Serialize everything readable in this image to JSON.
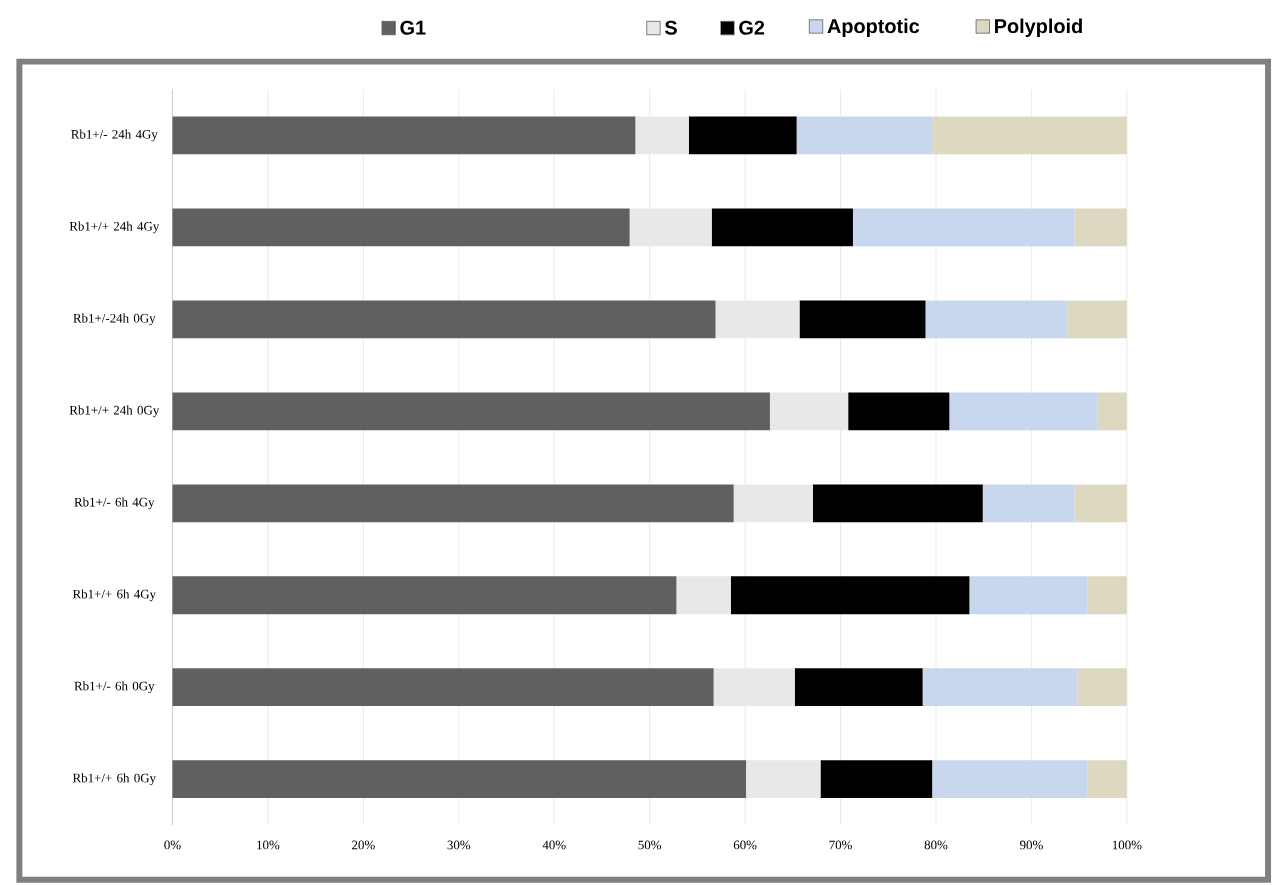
{
  "chart_data": {
    "type": "bar",
    "orientation": "horizontal",
    "stacked": true,
    "categories": [
      "Rb1+/- 24h 4Gy",
      "Rb1+/+ 24h 4Gy",
      "Rb1+/-24h 0Gy",
      "Rb1+/+ 24h 0Gy",
      "Rb1+/- 6h 4Gy",
      "Rb1+/+ 6h 4Gy",
      "Rb1+/- 6h 0Gy",
      "Rb1+/+ 6h 0Gy"
    ],
    "series": [
      {
        "name": "G1",
        "color": "#606060",
        "values": [
          48.5,
          47.9,
          56.9,
          62.6,
          58.8,
          52.8,
          56.7,
          60.1
        ]
      },
      {
        "name": "S",
        "color": "#e8e8e8",
        "values": [
          5.6,
          8.6,
          8.8,
          8.2,
          8.3,
          5.7,
          8.5,
          7.8
        ]
      },
      {
        "name": "G2",
        "color": "#000000",
        "values": [
          11.3,
          14.8,
          13.2,
          10.6,
          17.8,
          25.0,
          13.4,
          11.7
        ]
      },
      {
        "name": "Apoptotic",
        "color": "#c8d6ee",
        "values": [
          14.2,
          23.2,
          14.9,
          15.5,
          9.6,
          12.4,
          16.2,
          16.3
        ]
      },
      {
        "name": "Polyploid",
        "color": "#ddd8c0",
        "values": [
          20.4,
          5.5,
          6.2,
          3.1,
          5.5,
          4.1,
          5.2,
          4.1
        ]
      }
    ],
    "xlim": [
      0,
      100
    ],
    "xticks": [
      {
        "value": 0,
        "label": "0%"
      },
      {
        "value": 10,
        "label": "10%"
      },
      {
        "value": 20,
        "label": "20%"
      },
      {
        "value": 30,
        "label": "30%"
      },
      {
        "value": 40,
        "label": "40%"
      },
      {
        "value": 50,
        "label": "50%"
      },
      {
        "value": 60,
        "label": "60%"
      },
      {
        "value": 70,
        "label": "70%"
      },
      {
        "value": 80,
        "label": "80%"
      },
      {
        "value": 90,
        "label": "90%"
      },
      {
        "value": 100,
        "label": "100%"
      }
    ],
    "grid": "x",
    "legend": "top"
  }
}
